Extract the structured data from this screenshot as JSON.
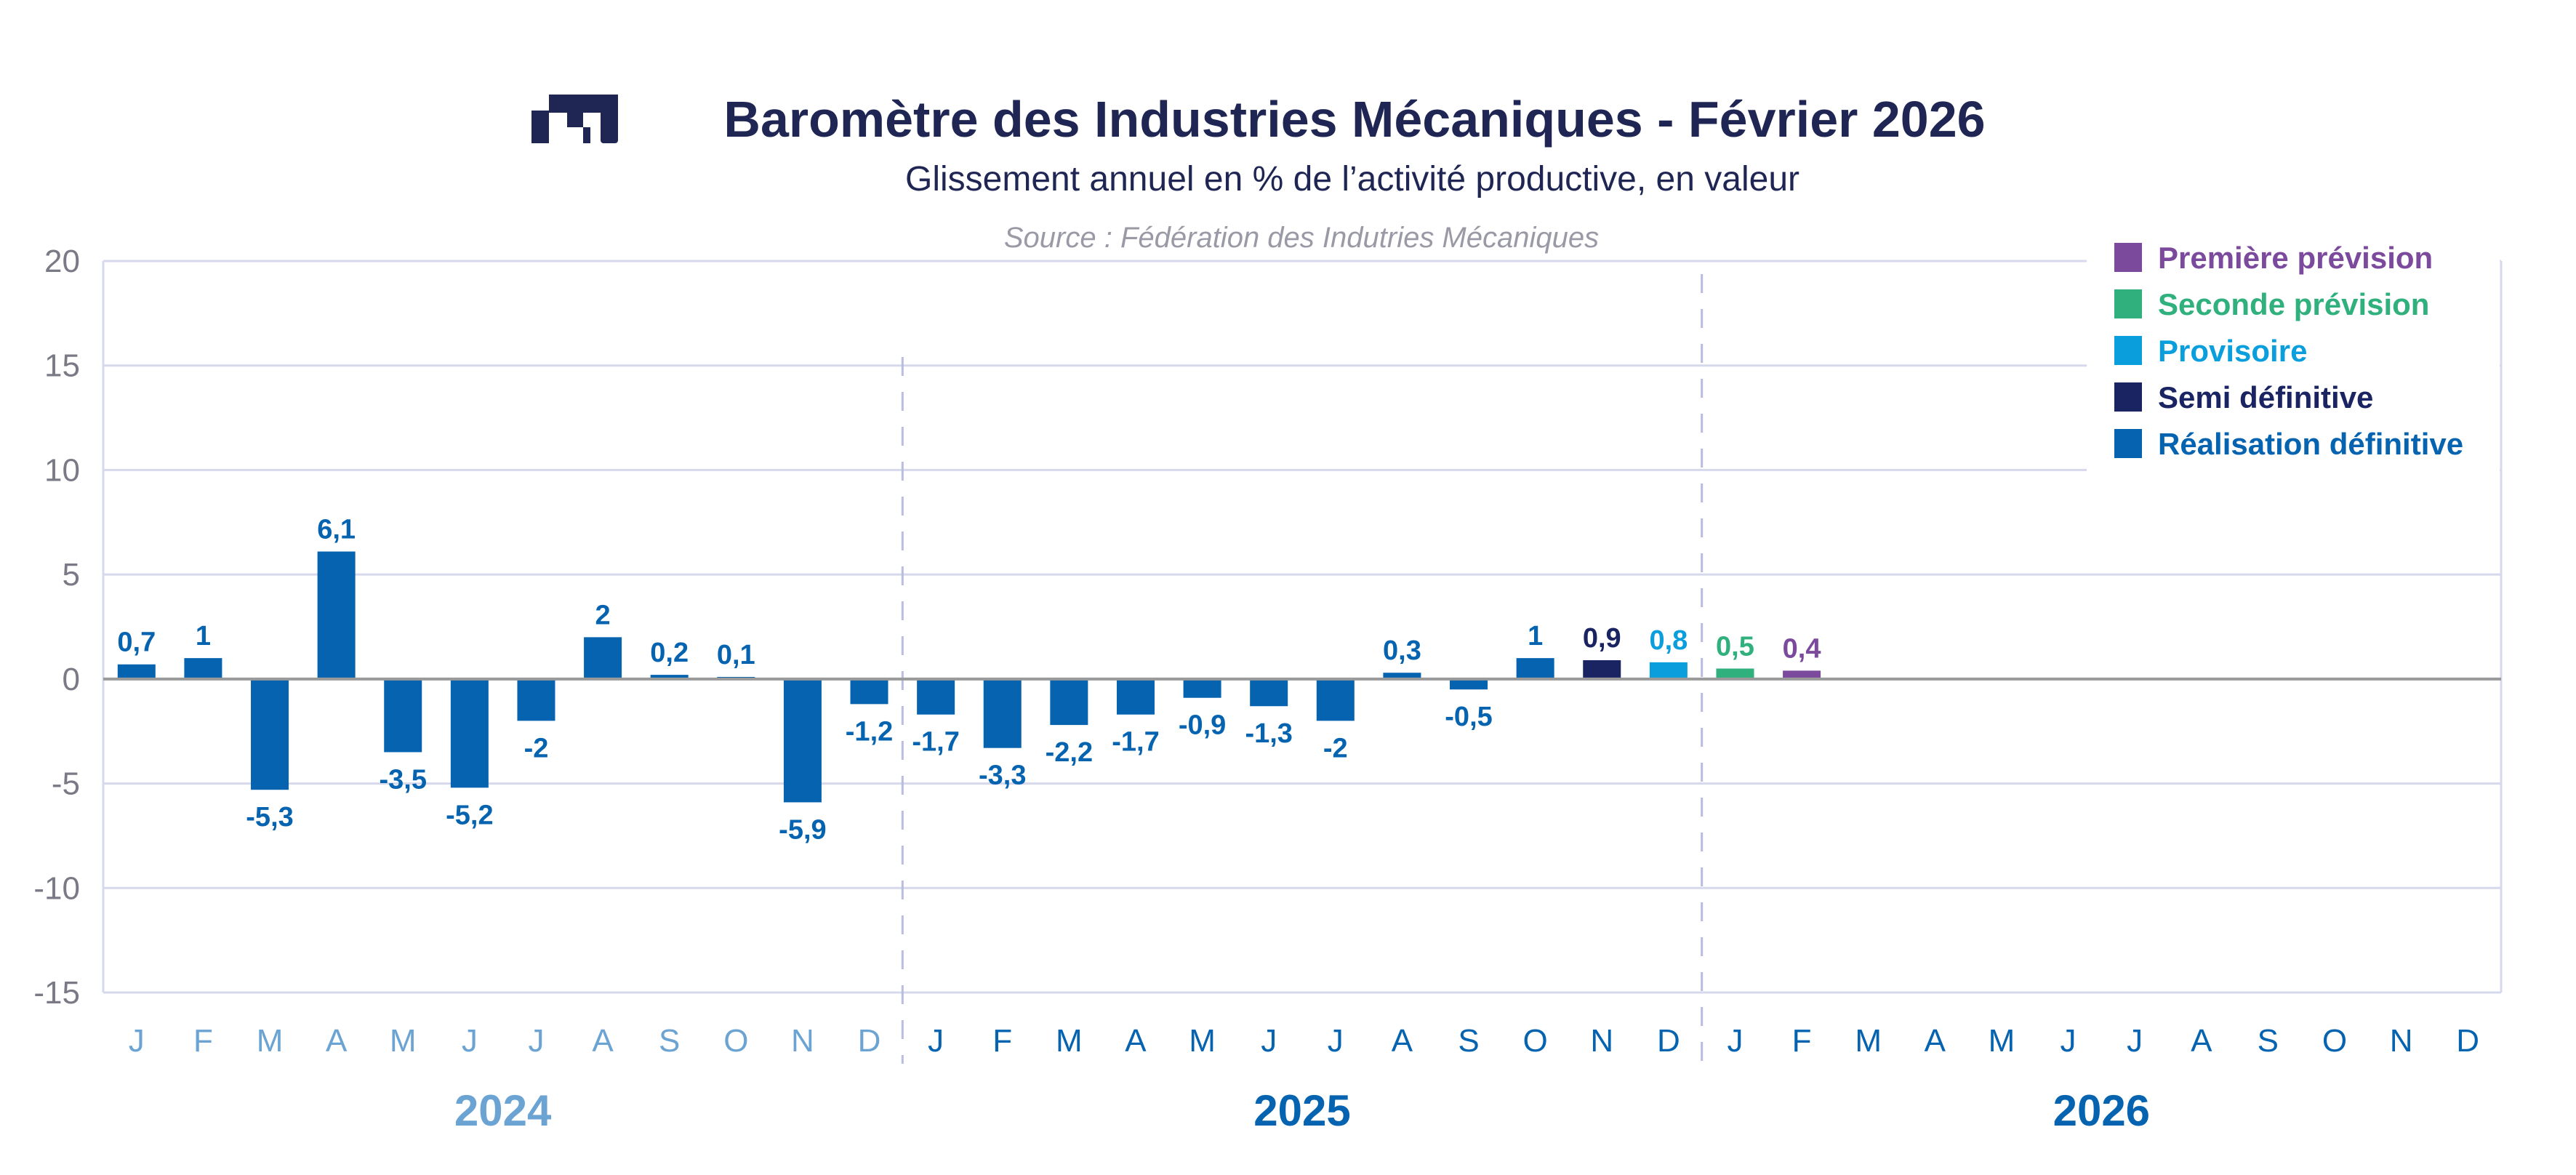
{
  "header": {
    "title": "Baromètre des Industries Mécaniques - Février 2026",
    "subtitle": "Glissement annuel en % de l’activité productive, en valeur",
    "source": "Source : Fédération des Indutries Mécaniques"
  },
  "colors": {
    "title": "#1f2654",
    "realisation": "#0563b0",
    "provisoire": "#0a9fdc",
    "semi": "#1b2463",
    "seconde": "#2fb07c",
    "premiere": "#7b4a9c",
    "year_past": "#6ba3d3",
    "grid": "#d6d8ec",
    "axis_label": "#7a7a86"
  },
  "chart_data": {
    "type": "bar",
    "title": "Baromètre des Industries Mécaniques - Février 2026",
    "ylabel": "",
    "xlabel": "",
    "ylim": [
      -15,
      20
    ],
    "yticks": [
      20,
      15,
      10,
      5,
      0,
      -5,
      -10,
      -15
    ],
    "grid": true,
    "legend_position": "top-right",
    "legend": [
      {
        "key": "premiere",
        "label": "Première prévision"
      },
      {
        "key": "seconde",
        "label": "Seconde prévision"
      },
      {
        "key": "provisoire",
        "label": "Provisoire"
      },
      {
        "key": "semi",
        "label": "Semi définitive"
      },
      {
        "key": "realisation",
        "label": "Réalisation définitive"
      }
    ],
    "years": [
      "2024",
      "2025",
      "2026"
    ],
    "months": [
      "J",
      "F",
      "M",
      "A",
      "M",
      "J",
      "J",
      "A",
      "S",
      "O",
      "N",
      "D"
    ],
    "series": [
      {
        "year": "2024",
        "values": [
          0.7,
          1,
          -5.3,
          6.1,
          -3.5,
          -5.2,
          -2,
          2,
          0.2,
          0.1,
          -5.9,
          -1.2
        ],
        "labels": [
          "0,7",
          "1",
          "-5,3",
          "6,1",
          "-3,5",
          "-5,2",
          "-2",
          "2",
          "0,2",
          "0,1",
          "-5,9",
          "-1,2"
        ],
        "status": [
          "realisation",
          "realisation",
          "realisation",
          "realisation",
          "realisation",
          "realisation",
          "realisation",
          "realisation",
          "realisation",
          "realisation",
          "realisation",
          "realisation"
        ]
      },
      {
        "year": "2025",
        "values": [
          -1.7,
          -3.3,
          -2.2,
          -1.7,
          -0.9,
          -1.3,
          -2,
          0.3,
          -0.5,
          1,
          0.9,
          0.8
        ],
        "labels": [
          "-1,7",
          "-3,3",
          "-2,2",
          "-1,7",
          "-0,9",
          "-1,3",
          "-2",
          "0,3",
          "-0,5",
          "1",
          "0,9",
          "0,8"
        ],
        "status": [
          "realisation",
          "realisation",
          "realisation",
          "realisation",
          "realisation",
          "realisation",
          "realisation",
          "realisation",
          "realisation",
          "realisation",
          "semi",
          "provisoire"
        ]
      },
      {
        "year": "2026",
        "values": [
          0.5,
          0.4,
          null,
          null,
          null,
          null,
          null,
          null,
          null,
          null,
          null,
          null
        ],
        "labels": [
          "0,5",
          "0,4",
          "",
          "",
          "",
          "",
          "",
          "",
          "",
          "",
          "",
          ""
        ],
        "status": [
          "seconde",
          "premiere",
          "",
          "",
          "",
          "",
          "",
          "",
          "",
          "",
          "",
          ""
        ]
      }
    ]
  }
}
